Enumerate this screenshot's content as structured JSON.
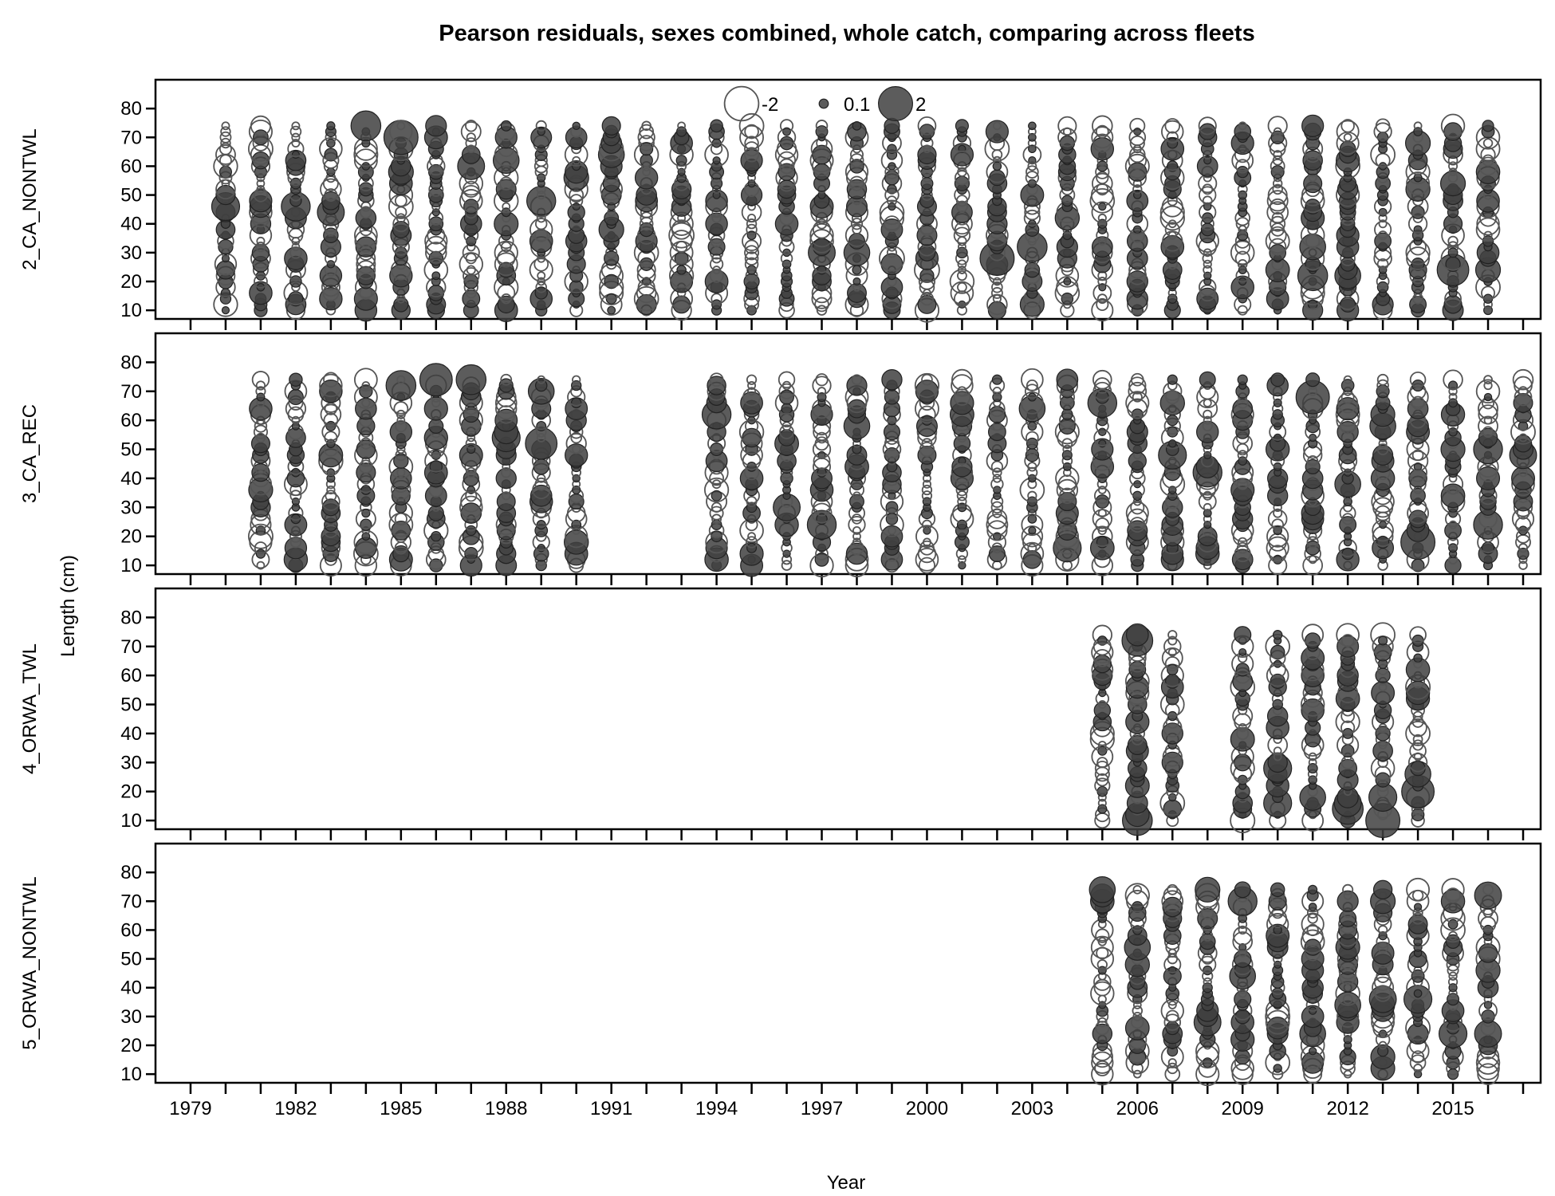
{
  "chart_data": {
    "type": "scatter",
    "subtype": "bubble residual plot",
    "title": "Pearson residuals, sexes combined, whole catch, comparing across fleets",
    "xlabel": "Year",
    "ylabel": "Length (cm)",
    "x_tick_labels": [
      "1979",
      "1982",
      "1985",
      "1988",
      "1991",
      "1994",
      "1997",
      "2000",
      "2003",
      "2006",
      "2009",
      "2012",
      "2015"
    ],
    "y_tick_labels": [
      "10",
      "20",
      "30",
      "40",
      "50",
      "60",
      "70",
      "80"
    ],
    "xlim": [
      1978,
      2017.5
    ],
    "ylim": [
      7,
      90
    ],
    "legend": {
      "placement": "top-center of first panel",
      "entries": [
        {
          "label": "-2",
          "value": -2,
          "style": "open"
        },
        {
          "label": "0.1",
          "value": 0.1,
          "style": "filled"
        },
        {
          "label": "2",
          "value": 2,
          "style": "filled"
        }
      ]
    },
    "bin_lengths": [
      10,
      12,
      14,
      16,
      18,
      20,
      22,
      24,
      26,
      28,
      30,
      32,
      34,
      36,
      38,
      40,
      42,
      44,
      46,
      48,
      50,
      52,
      54,
      56,
      58,
      60,
      62,
      64,
      66,
      68,
      70,
      72,
      74
    ],
    "colors": {
      "positive_fill": "#404040",
      "negative_stroke": "#555555",
      "frame": "#000000"
    },
    "panels": [
      {
        "name": "2_CA_NONTWL",
        "years": [
          1980,
          1981,
          1982,
          1983,
          1984,
          1985,
          1986,
          1987,
          1988,
          1989,
          1990,
          1991,
          1992,
          1993,
          1994,
          1995,
          1996,
          1997,
          1998,
          1999,
          2000,
          2001,
          2002,
          2003,
          2004,
          2005,
          2006,
          2007,
          2008,
          2009,
          2010,
          2011,
          2012,
          2013,
          2014,
          2015,
          2016
        ],
        "highlights": [
          {
            "year": 1980,
            "len": 46,
            "r": 1.3
          },
          {
            "year": 1980,
            "len": 60,
            "r": -0.9
          },
          {
            "year": 1982,
            "len": 46,
            "r": 1.4
          },
          {
            "year": 1983,
            "len": 44,
            "r": 1.2
          },
          {
            "year": 1984,
            "len": 74,
            "r": 1.5
          },
          {
            "year": 1985,
            "len": 70,
            "r": 2.0
          },
          {
            "year": 1985,
            "len": 58,
            "r": 1.0
          },
          {
            "year": 1987,
            "len": 60,
            "r": 1.2
          },
          {
            "year": 1988,
            "len": 62,
            "r": 1.1
          },
          {
            "year": 1989,
            "len": 48,
            "r": 1.4
          },
          {
            "year": 1990,
            "len": 56,
            "r": 1.0
          },
          {
            "year": 1991,
            "len": 64,
            "r": 1.1
          },
          {
            "year": 1991,
            "len": 38,
            "r": 1.0
          },
          {
            "year": 1993,
            "len": 36,
            "r": -1.0
          },
          {
            "year": 1997,
            "len": 30,
            "r": 1.2
          },
          {
            "year": 1998,
            "len": 30,
            "r": 1.1
          },
          {
            "year": 1999,
            "len": 28,
            "r": -1.0
          },
          {
            "year": 2000,
            "len": 24,
            "r": -1.0
          },
          {
            "year": 2002,
            "len": 28,
            "r": 2.0
          },
          {
            "year": 2002,
            "len": 72,
            "r": 0.8
          },
          {
            "year": 2003,
            "len": 32,
            "r": 1.5
          },
          {
            "year": 2011,
            "len": 22,
            "r": 1.5
          },
          {
            "year": 2011,
            "len": 32,
            "r": 1.1
          },
          {
            "year": 2012,
            "len": 22,
            "r": 1.1
          },
          {
            "year": 2014,
            "len": 68,
            "r": 1.0
          },
          {
            "year": 2015,
            "len": 24,
            "r": 1.7
          },
          {
            "year": 2015,
            "len": 54,
            "r": 1.0
          },
          {
            "year": 2016,
            "len": 24,
            "r": 1.0
          }
        ]
      },
      {
        "name": "3_CA_REC",
        "years": [
          1981,
          1982,
          1983,
          1984,
          1985,
          1986,
          1987,
          1988,
          1989,
          1990,
          1994,
          1995,
          1996,
          1997,
          1998,
          1999,
          2000,
          2001,
          2002,
          2003,
          2004,
          2005,
          2006,
          2007,
          2008,
          2009,
          2010,
          2011,
          2012,
          2013,
          2014,
          2015,
          2016,
          2017
        ],
        "highlights": [
          {
            "year": 1985,
            "len": 72,
            "r": 1.5
          },
          {
            "year": 1986,
            "len": 74,
            "r": 1.8
          },
          {
            "year": 1987,
            "len": 74,
            "r": 1.5
          },
          {
            "year": 1988,
            "len": 54,
            "r": 1.3
          },
          {
            "year": 1989,
            "len": 52,
            "r": 1.7
          },
          {
            "year": 1989,
            "len": 70,
            "r": 1.1
          },
          {
            "year": 1994,
            "len": 62,
            "r": 1.4
          },
          {
            "year": 1996,
            "len": 30,
            "r": 1.2
          },
          {
            "year": 1997,
            "len": 24,
            "r": 1.4
          },
          {
            "year": 1998,
            "len": 58,
            "r": 1.1
          },
          {
            "year": 2003,
            "len": 64,
            "r": 1.1
          },
          {
            "year": 2004,
            "len": 16,
            "r": 1.3
          },
          {
            "year": 2005,
            "len": 66,
            "r": 1.4
          },
          {
            "year": 2007,
            "len": 48,
            "r": 1.3
          },
          {
            "year": 2008,
            "len": 42,
            "r": 1.4
          },
          {
            "year": 2011,
            "len": 68,
            "r": 1.9
          },
          {
            "year": 2012,
            "len": 38,
            "r": 1.1
          },
          {
            "year": 2013,
            "len": 58,
            "r": 1.1
          },
          {
            "year": 2014,
            "len": 18,
            "r": 2.0
          },
          {
            "year": 2016,
            "len": 50,
            "r": 1.4
          },
          {
            "year": 2016,
            "len": 24,
            "r": 1.4
          },
          {
            "year": 2017,
            "len": 48,
            "r": 1.2
          }
        ]
      },
      {
        "name": "4_ORWA_TWL",
        "years": [
          2005,
          2006,
          2007,
          2009,
          2010,
          2011,
          2012,
          2013,
          2014
        ],
        "highlights": [
          {
            "year": 2006,
            "len": 72,
            "r": 1.6
          },
          {
            "year": 2006,
            "len": 10,
            "r": 1.5
          },
          {
            "year": 2006,
            "len": 12,
            "r": 0.9
          },
          {
            "year": 2010,
            "len": 28,
            "r": 1.3
          },
          {
            "year": 2010,
            "len": 16,
            "r": 1.3
          },
          {
            "year": 2011,
            "len": 18,
            "r": 1.1
          },
          {
            "year": 2012,
            "len": 14,
            "r": 1.6
          },
          {
            "year": 2012,
            "len": 16,
            "r": 1.2
          },
          {
            "year": 2013,
            "len": 10,
            "r": 2.0
          },
          {
            "year": 2013,
            "len": 18,
            "r": 1.3
          },
          {
            "year": 2014,
            "len": 20,
            "r": 1.8
          },
          {
            "year": 2014,
            "len": 26,
            "r": 1.1
          }
        ]
      },
      {
        "name": "5_ORWA_NONTWL",
        "years": [
          2005,
          2006,
          2007,
          2008,
          2009,
          2010,
          2011,
          2012,
          2013,
          2014,
          2015,
          2016
        ],
        "highlights": [
          {
            "year": 2005,
            "len": 74,
            "r": 1.1
          },
          {
            "year": 2006,
            "len": 54,
            "r": 1.1
          },
          {
            "year": 2008,
            "len": 74,
            "r": 1.0
          },
          {
            "year": 2008,
            "len": 28,
            "r": 1.2
          },
          {
            "year": 2009,
            "len": 70,
            "r": 1.4
          },
          {
            "year": 2009,
            "len": 44,
            "r": 1.1
          },
          {
            "year": 2011,
            "len": 24,
            "r": 1.1
          },
          {
            "year": 2012,
            "len": 34,
            "r": 1.1
          },
          {
            "year": 2013,
            "len": 70,
            "r": 1.0
          },
          {
            "year": 2013,
            "len": 36,
            "r": 1.2
          },
          {
            "year": 2014,
            "len": 36,
            "r": 1.3
          },
          {
            "year": 2015,
            "len": 24,
            "r": 1.3
          },
          {
            "year": 2016,
            "len": 72,
            "r": 1.2
          },
          {
            "year": 2016,
            "len": 24,
            "r": 1.2
          }
        ]
      }
    ]
  }
}
